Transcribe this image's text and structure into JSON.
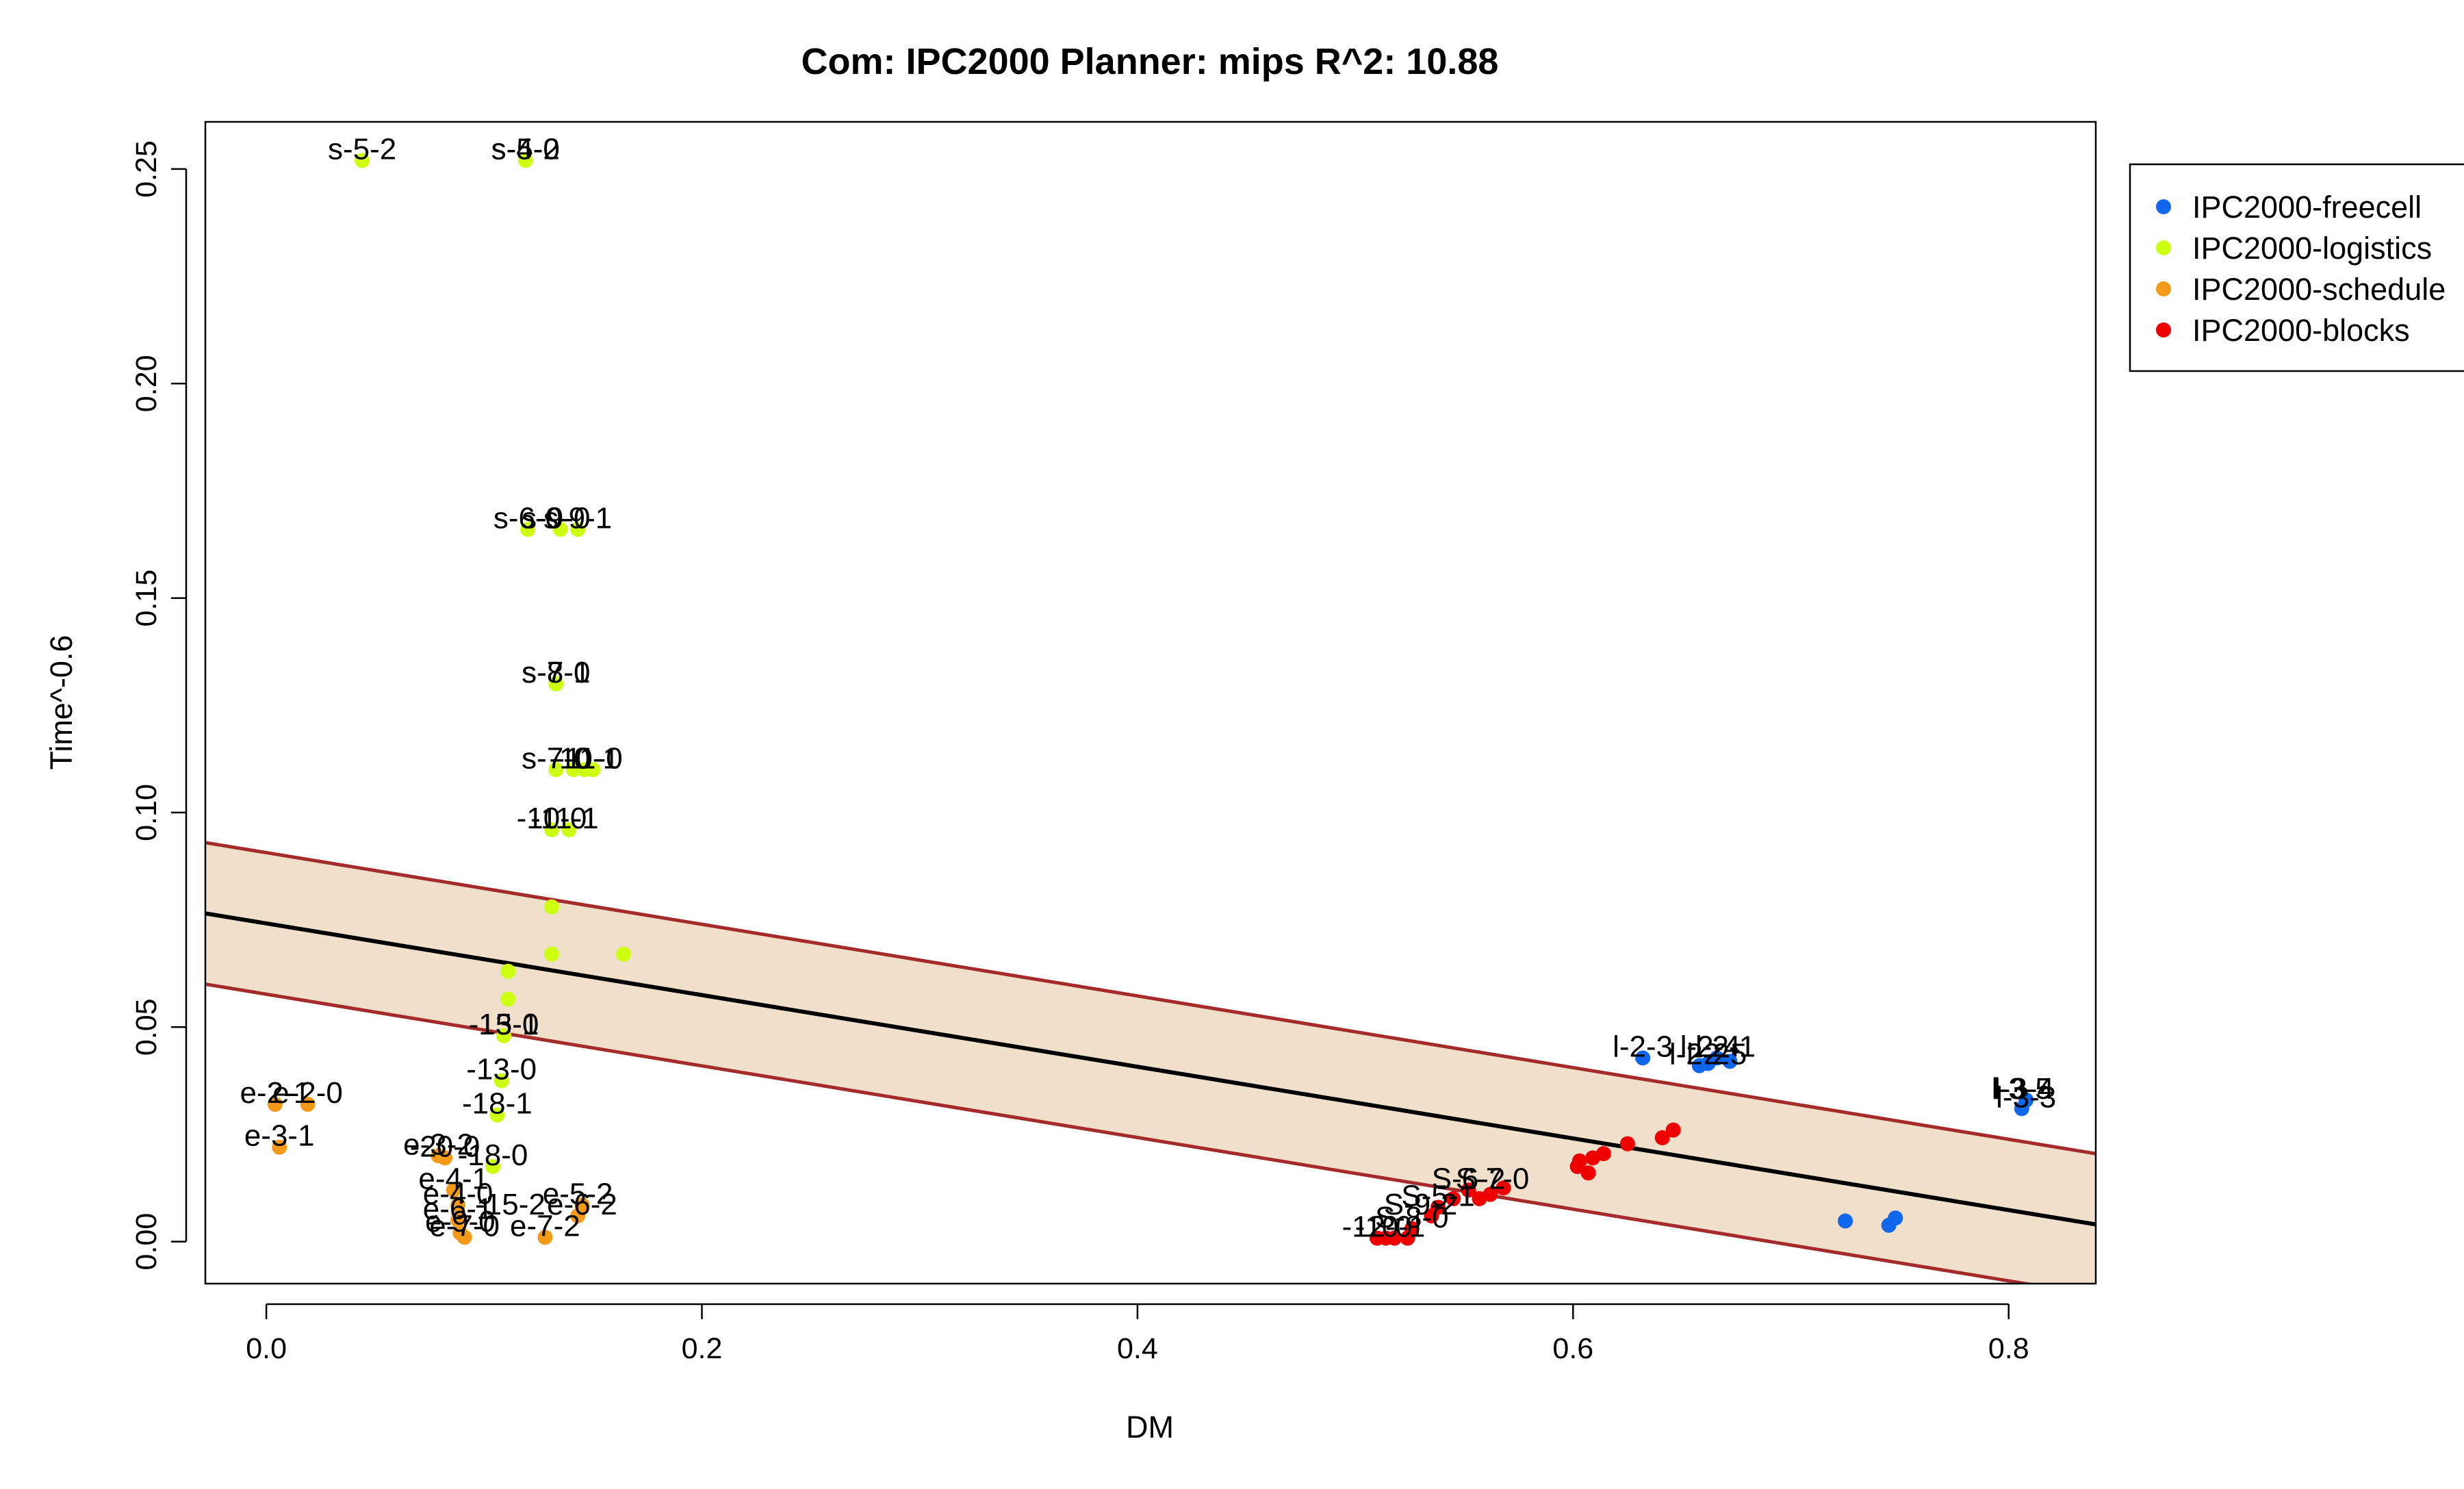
{
  "chart_data": {
    "type": "scatter",
    "title": "Com: IPC2000 Planner: mips R^2: 10.88",
    "xlabel": "DM",
    "ylabel": "Time^-0.6",
    "xlim": [
      -0.028,
      0.84
    ],
    "ylim": [
      -0.0098,
      0.261
    ],
    "x_ticks": [
      "0.0",
      "0.2",
      "0.4",
      "0.6",
      "0.8"
    ],
    "y_ticks": [
      "0.00",
      "0.05",
      "0.10",
      "0.15",
      "0.20",
      "0.25"
    ],
    "legend_position": "top-right outside plot",
    "fit_line": {
      "y_at_xmin": 0.0765,
      "y_at_xmax": 0.004,
      "color": "#000000"
    },
    "band": {
      "upper": {
        "y_at_xmin": 0.093,
        "y_at_xmax": 0.0205
      },
      "lower": {
        "y_at_xmin": 0.06,
        "y_at_xmax": -0.0125
      },
      "fill": "#efdfcb",
      "edge": "#a52a2a"
    },
    "series": [
      {
        "name": "IPC2000-freecell",
        "color": "#1166ee",
        "points": [
          {
            "x": 0.632,
            "y": 0.0428
          },
          {
            "x": 0.658,
            "y": 0.041
          },
          {
            "x": 0.662,
            "y": 0.0415
          },
          {
            "x": 0.666,
            "y": 0.0428
          },
          {
            "x": 0.672,
            "y": 0.042
          },
          {
            "x": 0.725,
            "y": 0.0048
          },
          {
            "x": 0.745,
            "y": 0.0038
          },
          {
            "x": 0.748,
            "y": 0.0055
          },
          {
            "x": 0.806,
            "y": 0.031
          },
          {
            "x": 0.808,
            "y": 0.033
          }
        ]
      },
      {
        "name": "IPC2000-logistics",
        "color": "#ccff11",
        "points": [
          {
            "x": 0.044,
            "y": 0.252
          },
          {
            "x": 0.119,
            "y": 0.252
          },
          {
            "x": 0.12,
            "y": 0.166
          },
          {
            "x": 0.135,
            "y": 0.166
          },
          {
            "x": 0.143,
            "y": 0.166
          },
          {
            "x": 0.133,
            "y": 0.13
          },
          {
            "x": 0.133,
            "y": 0.11
          },
          {
            "x": 0.141,
            "y": 0.11
          },
          {
            "x": 0.146,
            "y": 0.11
          },
          {
            "x": 0.15,
            "y": 0.11
          },
          {
            "x": 0.131,
            "y": 0.096
          },
          {
            "x": 0.139,
            "y": 0.096
          },
          {
            "x": 0.131,
            "y": 0.078
          },
          {
            "x": 0.131,
            "y": 0.067
          },
          {
            "x": 0.164,
            "y": 0.067
          },
          {
            "x": 0.111,
            "y": 0.063
          },
          {
            "x": 0.111,
            "y": 0.0565
          },
          {
            "x": 0.109,
            "y": 0.048
          },
          {
            "x": 0.108,
            "y": 0.0375
          },
          {
            "x": 0.106,
            "y": 0.0295
          },
          {
            "x": 0.104,
            "y": 0.0175
          }
        ]
      },
      {
        "name": "IPC2000-schedule",
        "color": "#f39a1a",
        "points": [
          {
            "x": 0.004,
            "y": 0.032
          },
          {
            "x": 0.019,
            "y": 0.032
          },
          {
            "x": 0.006,
            "y": 0.022
          },
          {
            "x": 0.079,
            "y": 0.02
          },
          {
            "x": 0.082,
            "y": 0.0195
          },
          {
            "x": 0.086,
            "y": 0.012
          },
          {
            "x": 0.088,
            "y": 0.0085
          },
          {
            "x": 0.088,
            "y": 0.005
          },
          {
            "x": 0.089,
            "y": 0.002
          },
          {
            "x": 0.091,
            "y": 0.001
          },
          {
            "x": 0.128,
            "y": 0.001
          },
          {
            "x": 0.143,
            "y": 0.006
          },
          {
            "x": 0.145,
            "y": 0.0085
          }
        ]
      },
      {
        "name": "IPC2000-blocks",
        "color": "#ee0000",
        "points": [
          {
            "x": 0.51,
            "y": 0.0008
          },
          {
            "x": 0.514,
            "y": 0.0008
          },
          {
            "x": 0.518,
            "y": 0.0008
          },
          {
            "x": 0.524,
            "y": 0.0008
          },
          {
            "x": 0.526,
            "y": 0.003
          },
          {
            "x": 0.535,
            "y": 0.006
          },
          {
            "x": 0.538,
            "y": 0.008
          },
          {
            "x": 0.545,
            "y": 0.01
          },
          {
            "x": 0.552,
            "y": 0.012
          },
          {
            "x": 0.557,
            "y": 0.01
          },
          {
            "x": 0.562,
            "y": 0.011
          },
          {
            "x": 0.568,
            "y": 0.0125
          },
          {
            "x": 0.602,
            "y": 0.0175
          },
          {
            "x": 0.603,
            "y": 0.0188
          },
          {
            "x": 0.607,
            "y": 0.016
          },
          {
            "x": 0.609,
            "y": 0.0195
          },
          {
            "x": 0.614,
            "y": 0.0205
          },
          {
            "x": 0.625,
            "y": 0.0228
          },
          {
            "x": 0.641,
            "y": 0.0242
          },
          {
            "x": 0.646,
            "y": 0.026
          }
        ]
      }
    ],
    "point_labels": [
      {
        "text": "s-5-2",
        "x": 0.044,
        "y": 0.252
      },
      {
        "text": "s-4-2",
        "x": 0.119,
        "y": 0.252
      },
      {
        "text": "s-5-0",
        "x": 0.119,
        "y": 0.252
      },
      {
        "text": "s-6-0",
        "x": 0.12,
        "y": 0.166
      },
      {
        "text": "s-9-0",
        "x": 0.133,
        "y": 0.166
      },
      {
        "text": "s-9-1",
        "x": 0.143,
        "y": 0.166
      },
      {
        "text": "s-7-1",
        "x": 0.133,
        "y": 0.13
      },
      {
        "text": "s-8-0",
        "x": 0.133,
        "y": 0.13
      },
      {
        "text": "s-7-0",
        "x": 0.133,
        "y": 0.11
      },
      {
        "text": "-10-1",
        "x": 0.146,
        "y": 0.11
      },
      {
        "text": "-11-0",
        "x": 0.148,
        "y": 0.11
      },
      {
        "text": "-10-0",
        "x": 0.131,
        "y": 0.096
      },
      {
        "text": "-11-1",
        "x": 0.137,
        "y": 0.096
      },
      {
        "text": "-13-1",
        "x": 0.109,
        "y": 0.048
      },
      {
        "text": "-15-0",
        "x": 0.109,
        "y": 0.048
      },
      {
        "text": "-13-0",
        "x": 0.108,
        "y": 0.0375
      },
      {
        "text": "-18-1",
        "x": 0.106,
        "y": 0.0295
      },
      {
        "text": "-18-0",
        "x": 0.104,
        "y": 0.0175
      },
      {
        "text": "e-2-1",
        "x": 0.004,
        "y": 0.032
      },
      {
        "text": "e-2-0",
        "x": 0.019,
        "y": 0.032
      },
      {
        "text": "e-3-1",
        "x": 0.006,
        "y": 0.022
      },
      {
        "text": "e-3-2",
        "x": 0.079,
        "y": 0.02
      },
      {
        "text": "-20-0",
        "x": 0.082,
        "y": 0.0195
      },
      {
        "text": "e-4-1",
        "x": 0.086,
        "y": 0.012
      },
      {
        "text": "e-4-0",
        "x": 0.088,
        "y": 0.0085
      },
      {
        "text": "e-6-1",
        "x": 0.088,
        "y": 0.005
      },
      {
        "text": "e-9-0",
        "x": 0.089,
        "y": 0.002
      },
      {
        "text": "e-7-0",
        "x": 0.091,
        "y": 0.001
      },
      {
        "text": "-15-2",
        "x": 0.112,
        "y": 0.006
      },
      {
        "text": "e-7-2",
        "x": 0.128,
        "y": 0.001
      },
      {
        "text": "e-5-2",
        "x": 0.143,
        "y": 0.0085
      },
      {
        "text": "e-6-2",
        "x": 0.145,
        "y": 0.006
      },
      {
        "text": "-12-0",
        "x": 0.51,
        "y": 0.0008
      },
      {
        "text": "-10-1",
        "x": 0.516,
        "y": 0.0008
      },
      {
        "text": "S-8-0",
        "x": 0.526,
        "y": 0.003
      },
      {
        "text": "S-9-2",
        "x": 0.53,
        "y": 0.006
      },
      {
        "text": "S-5-1",
        "x": 0.538,
        "y": 0.008
      },
      {
        "text": "S-6-2",
        "x": 0.552,
        "y": 0.012
      },
      {
        "text": "S-7-0",
        "x": 0.563,
        "y": 0.012
      },
      {
        "text": "l-2-3",
        "x": 0.632,
        "y": 0.0428
      },
      {
        "text": "l-2-2",
        "x": 0.658,
        "y": 0.041
      },
      {
        "text": "l-2-4",
        "x": 0.663,
        "y": 0.0428
      },
      {
        "text": "l-2-1",
        "x": 0.67,
        "y": 0.0428
      },
      {
        "text": "l-2-5",
        "x": 0.666,
        "y": 0.041
      },
      {
        "text": "l-3-5",
        "x": 0.806,
        "y": 0.033
      },
      {
        "text": "l-3-4",
        "x": 0.807,
        "y": 0.033
      },
      {
        "text": "l-3-3",
        "x": 0.808,
        "y": 0.031
      }
    ]
  }
}
